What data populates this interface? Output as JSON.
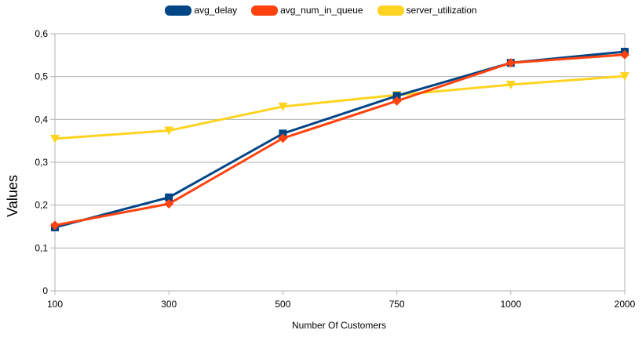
{
  "chart_data": {
    "type": "line",
    "categories": [
      "100",
      "300",
      "500",
      "750",
      "1000",
      "2000"
    ],
    "series": [
      {
        "name": "avg_delay",
        "color": "#004586",
        "marker": "square",
        "values": [
          0.148,
          0.218,
          0.367,
          0.455,
          0.532,
          0.558
        ]
      },
      {
        "name": "avg_num_in_queue",
        "color": "#ff420e",
        "marker": "diamond",
        "values": [
          0.153,
          0.203,
          0.356,
          0.443,
          0.532,
          0.551
        ]
      },
      {
        "name": "server_utilization",
        "color": "#ffd320",
        "marker": "triangle-down",
        "values": [
          0.355,
          0.374,
          0.43,
          0.457,
          0.481,
          0.501
        ]
      }
    ],
    "xlabel": "Number Of Customers",
    "ylabel": "Values",
    "ylim": [
      0,
      0.6
    ],
    "yticks": [
      "0",
      "0,1",
      "0,2",
      "0,3",
      "0,4",
      "0,5",
      "0,6"
    ],
    "grid": true,
    "legend_position": "top"
  }
}
